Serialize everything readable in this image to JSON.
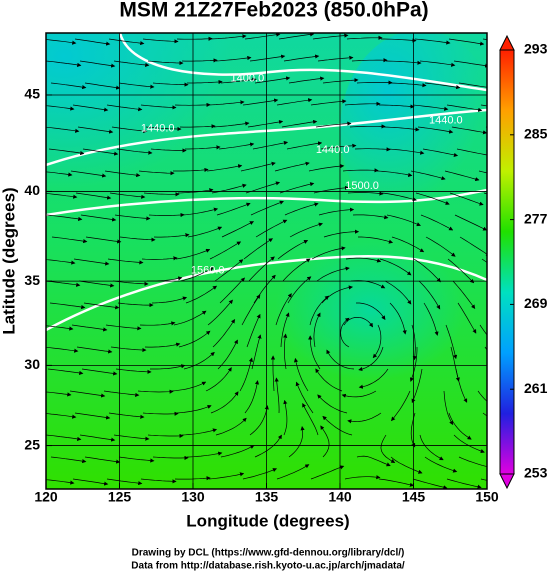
{
  "chart_data": {
    "type": "map",
    "title": "MSM 21Z27Feb2023 (850.0hPa)",
    "x_label": "Longitude (degrees)",
    "y_label": "Latitude  (degrees)",
    "projection": "mercator",
    "xlim": [
      120,
      150
    ],
    "ylim": [
      22.2,
      48
    ],
    "xticks": [
      120,
      125,
      130,
      135,
      140,
      145,
      150
    ],
    "yticks": [
      25,
      30,
      35,
      40,
      45
    ],
    "grid": true,
    "colorbar": {
      "lim": [
        253,
        293
      ],
      "ticks": [
        253,
        261,
        269,
        277,
        285,
        293
      ],
      "colors": [
        "#e000e0",
        "#2020e0",
        "#00a0ff",
        "#00e0c0",
        "#20e000",
        "#c0f000",
        "#ffa000",
        "#ff2000"
      ]
    },
    "contour_labels": [
      {
        "text": "1400.0",
        "lon": 133.7,
        "lat": 45.8
      },
      {
        "text": "1440.0",
        "lon": 127.6,
        "lat": 43.3
      },
      {
        "text": "1440.0",
        "lon": 139.5,
        "lat": 42.2
      },
      {
        "text": "1440.0",
        "lon": 147.2,
        "lat": 43.7
      },
      {
        "text": "1500.0",
        "lon": 141.5,
        "lat": 40.3
      },
      {
        "text": "1560.0",
        "lon": 131.0,
        "lat": 35.6
      }
    ],
    "credits": [
      "Drawing by DCL (https://www.gfd-dennou.org/library/dcl/)",
      "Data from http://database.rish.kyoto-u.ac.jp/arch/jmadata/"
    ]
  }
}
